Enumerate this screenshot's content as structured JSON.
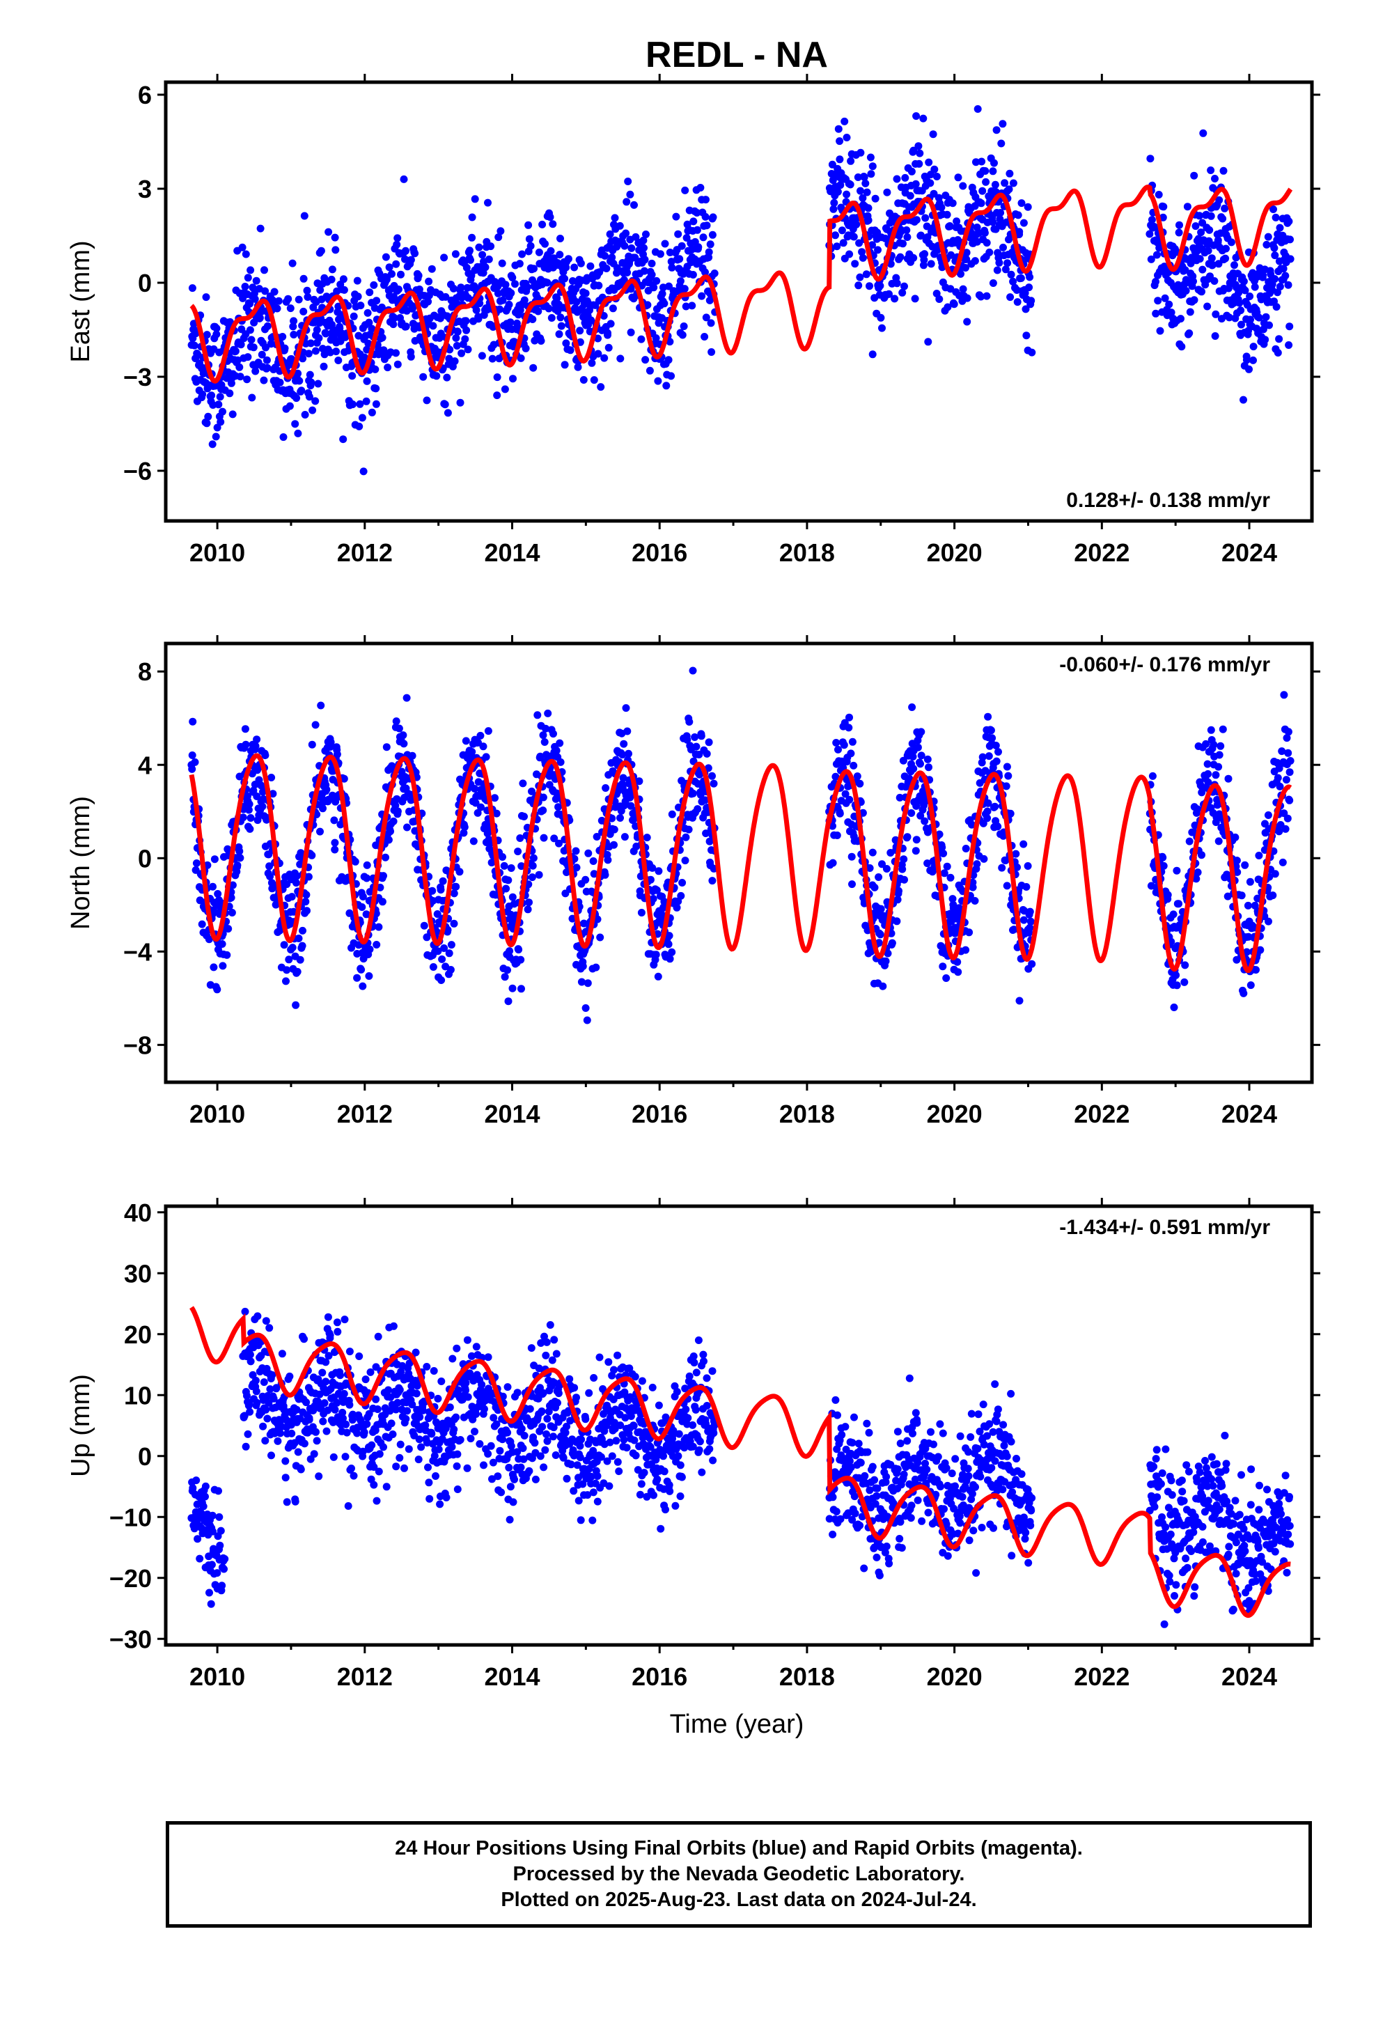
{
  "title": "REDL - NA",
  "xlabel": "Time (year)",
  "footer": {
    "line1": "24 Hour Positions Using Final Orbits (blue) and Rapid Orbits (magenta).",
    "line2": "Processed by the Nevada Geodetic Laboratory.",
    "line3": "Plotted on 2025-Aug-23. Last data on 2024-Jul-24."
  },
  "colors": {
    "data": "#0000ff",
    "model": "#ff0000",
    "frame": "#000000"
  },
  "chart_data": [
    {
      "type": "scatter",
      "ylabel": "East (mm)",
      "rate_label": "0.128+/- 0.138 mm/yr",
      "rate_position": "bottom-right",
      "xlim": [
        2009.3,
        2024.85
      ],
      "ylim": [
        -7.6,
        6.4
      ],
      "xticks": [
        "2010",
        "2012",
        "2014",
        "2016",
        "2018",
        "2020",
        "2022",
        "2024"
      ],
      "yticks": [
        "6",
        "3",
        "0",
        "−3",
        "−6"
      ],
      "data_periods": [
        [
          2009.65,
          2016.75
        ],
        [
          2018.3,
          2021.05
        ],
        [
          2022.65,
          2024.56
        ]
      ],
      "model": {
        "offsets": [
          [
            2009.65,
            -0.9
          ],
          [
            2018.3,
            1.2
          ],
          [
            2022.65,
            1.0
          ]
        ],
        "trend": 0.128,
        "annual": 1.05,
        "semiannual": 0.45
      },
      "series": [
        {
          "role": "data",
          "period": [
            2009.65,
            2016.75
          ],
          "mean_start": -2.2,
          "mean_end": 0.2,
          "scatter": 1.1
        },
        {
          "role": "data",
          "period": [
            2018.3,
            2021.05
          ],
          "mean_start": 1.8,
          "mean_end": 1.5,
          "scatter": 1.1
        },
        {
          "role": "data",
          "period": [
            2022.65,
            2024.56
          ],
          "mean_start": 1.5,
          "mean_end": -0.6,
          "scatter": 1.0
        }
      ]
    },
    {
      "type": "scatter",
      "ylabel": "North (mm)",
      "rate_label": "-0.060+/- 0.176 mm/yr",
      "rate_position": "top-right",
      "xlim": [
        2009.3,
        2024.85
      ],
      "ylim": [
        -9.6,
        9.2
      ],
      "xticks": [
        "2010",
        "2012",
        "2014",
        "2016",
        "2018",
        "2020",
        "2022",
        "2024"
      ],
      "yticks": [
        "8",
        "4",
        "0",
        "−4",
        "−8"
      ],
      "data_periods": [
        [
          2009.65,
          2016.75
        ],
        [
          2018.3,
          2021.05
        ],
        [
          2022.65,
          2024.56
        ]
      ],
      "model": {
        "offsets": [
          [
            2009.65,
            0.5
          ],
          [
            2018.3,
            0.3
          ],
          [
            2022.65,
            0.0
          ]
        ],
        "trend": -0.06,
        "annual": 3.9,
        "semiannual": 0.5
      },
      "series": [
        {
          "role": "data",
          "period": [
            2009.65,
            2016.75
          ],
          "mean_start": 0.4,
          "mean_end": 0.4,
          "scatter": 1.3
        },
        {
          "role": "data",
          "period": [
            2018.3,
            2021.05
          ],
          "mean_start": 0.2,
          "mean_end": 0.2,
          "scatter": 1.3
        },
        {
          "role": "data",
          "period": [
            2022.65,
            2024.56
          ],
          "mean_start": 0.0,
          "mean_end": 0.0,
          "scatter": 1.3
        }
      ]
    },
    {
      "type": "scatter",
      "ylabel": "Up (mm)",
      "rate_label": "-1.434+/- 0.591 mm/yr",
      "rate_position": "top-right",
      "xlim": [
        2009.3,
        2024.85
      ],
      "ylim": [
        -31,
        41
      ],
      "xticks": [
        "2010",
        "2012",
        "2014",
        "2016",
        "2018",
        "2020",
        "2022",
        "2024"
      ],
      "yticks": [
        "40",
        "30",
        "20",
        "10",
        "0",
        "−10",
        "−20",
        "−30"
      ],
      "data_periods": [
        [
          2009.65,
          2010.1
        ],
        [
          2010.35,
          2016.75
        ],
        [
          2018.3,
          2021.05
        ],
        [
          2022.65,
          2024.56
        ]
      ],
      "model": {
        "offsets": [
          [
            2009.65,
            12.0
          ],
          [
            2010.35,
            8.0
          ],
          [
            2018.3,
            -4.0
          ],
          [
            2022.65,
            -9.5
          ]
        ],
        "trend": -1.434,
        "annual": 4.5,
        "semiannual": 0.8
      },
      "series": [
        {
          "role": "data",
          "period": [
            2009.65,
            2010.1
          ],
          "mean_start": -8.0,
          "mean_end": -14.0,
          "scatter": 3.5
        },
        {
          "role": "data",
          "period": [
            2010.35,
            2016.75
          ],
          "mean_start": 9.0,
          "mean_end": 3.0,
          "scatter": 5.0
        },
        {
          "role": "data",
          "period": [
            2018.3,
            2021.05
          ],
          "mean_start": -6.0,
          "mean_end": -5.0,
          "scatter": 5.0
        },
        {
          "role": "data",
          "period": [
            2022.65,
            2024.56
          ],
          "mean_start": -8.0,
          "mean_end": -14.0,
          "scatter": 5.0
        }
      ]
    }
  ]
}
